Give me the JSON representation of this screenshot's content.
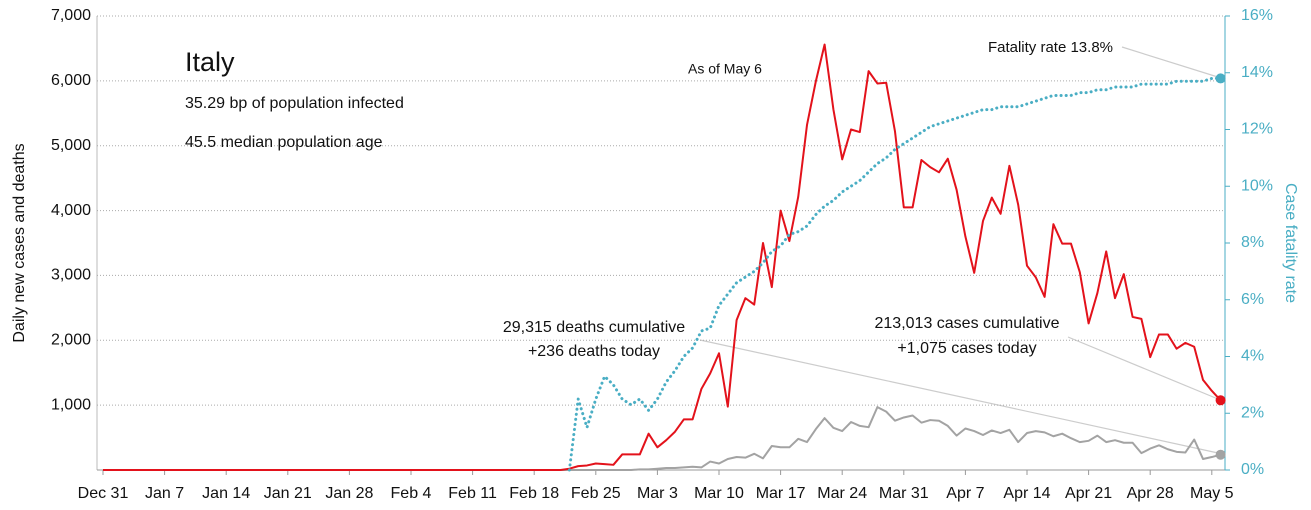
{
  "chart_data": {
    "type": "line",
    "ylabel": "Daily new cases and deaths",
    "y2label": "Case fatality rate",
    "annotations": [
      "Italy",
      "35.29 bp of population infected",
      "45.5 median population age",
      "As of May 6",
      "Fatality rate 13.8%",
      "29,315 deaths cumulative",
      "+236 deaths today",
      "213,013 cases cumulative",
      "+1,075 cases today"
    ],
    "categories": [
      "Dec 31",
      null,
      null,
      null,
      null,
      null,
      null,
      "Jan 7",
      null,
      null,
      null,
      null,
      null,
      null,
      "Jan 14",
      null,
      null,
      null,
      null,
      null,
      null,
      "Jan 21",
      null,
      null,
      null,
      null,
      null,
      null,
      "Jan 28",
      null,
      null,
      null,
      null,
      null,
      null,
      "Feb 4",
      null,
      null,
      null,
      null,
      null,
      null,
      "Feb 11",
      null,
      null,
      null,
      null,
      null,
      null,
      "Feb 18",
      null,
      null,
      null,
      null,
      null,
      null,
      "Feb 25",
      null,
      null,
      null,
      null,
      null,
      null,
      "Mar 3",
      null,
      null,
      null,
      null,
      null,
      null,
      "Mar 10",
      null,
      null,
      null,
      null,
      null,
      null,
      "Mar 17",
      null,
      null,
      null,
      null,
      null,
      null,
      "Mar 24",
      null,
      null,
      null,
      null,
      null,
      null,
      "Mar 31",
      null,
      null,
      null,
      null,
      null,
      null,
      "Apr 7",
      null,
      null,
      null,
      null,
      null,
      null,
      "Apr 14",
      null,
      null,
      null,
      null,
      null,
      null,
      "Apr 21",
      null,
      null,
      null,
      null,
      null,
      null,
      "Apr 28",
      null,
      null,
      null,
      null,
      null,
      null,
      "May 5",
      null
    ],
    "series": [
      {
        "color": "#e3121b",
        "style": "solid",
        "values": [
          0,
          0,
          0,
          0,
          0,
          0,
          0,
          0,
          0,
          0,
          0,
          0,
          0,
          0,
          0,
          0,
          0,
          0,
          0,
          0,
          0,
          0,
          0,
          0,
          0,
          0,
          0,
          0,
          0,
          0,
          0,
          0,
          0,
          0,
          0,
          0,
          0,
          0,
          0,
          0,
          0,
          0,
          0,
          0,
          0,
          0,
          0,
          0,
          0,
          0,
          0,
          0,
          0,
          20,
          60,
          70,
          100,
          90,
          80,
          240,
          240,
          240,
          560,
          350,
          460,
          590,
          780,
          780,
          1250,
          1490,
          1800,
          977,
          2310,
          2650,
          2550,
          3500,
          2820,
          4000,
          3530,
          4210,
          5320,
          5990,
          6560,
          5560,
          4790,
          5250,
          5210,
          6150,
          5960,
          5970,
          5220,
          4050,
          4050,
          4780,
          4670,
          4590,
          4800,
          4320,
          3600,
          3040,
          3840,
          4200,
          3950,
          4690,
          4090,
          3150,
          2970,
          2670,
          3790,
          3490,
          3490,
          3050,
          2260,
          2730,
          3370,
          2650,
          3020,
          2360,
          2330,
          1740,
          2090,
          2090,
          1870,
          1960,
          1900,
          1390,
          1220,
          1075
        ]
      },
      {
        "color": "#a3a3a3",
        "style": "solid",
        "values": [
          0,
          0,
          0,
          0,
          0,
          0,
          0,
          0,
          0,
          0,
          0,
          0,
          0,
          0,
          0,
          0,
          0,
          0,
          0,
          0,
          0,
          0,
          0,
          0,
          0,
          0,
          0,
          0,
          0,
          0,
          0,
          0,
          0,
          0,
          0,
          0,
          0,
          0,
          0,
          0,
          0,
          0,
          0,
          0,
          0,
          0,
          0,
          0,
          0,
          0,
          0,
          0,
          0,
          0,
          0,
          0,
          0,
          0,
          0,
          0,
          0,
          10,
          10,
          20,
          30,
          30,
          40,
          50,
          40,
          130,
          100,
          170,
          200,
          190,
          250,
          180,
          370,
          350,
          350,
          480,
          430,
          630,
          800,
          650,
          600,
          740,
          680,
          660,
          970,
          900,
          760,
          810,
          840,
          730,
          770,
          760,
          680,
          530,
          640,
          600,
          540,
          610,
          570,
          620,
          430,
          570,
          600,
          580,
          520,
          560,
          490,
          430,
          450,
          530,
          430,
          460,
          420,
          420,
          260,
          330,
          380,
          320,
          280,
          270,
          470,
          170,
          200,
          236
        ]
      },
      {
        "color": "#4aaec4",
        "style": "dotted",
        "axis": "y2",
        "values": [
          null,
          null,
          null,
          null,
          null,
          null,
          null,
          null,
          null,
          null,
          null,
          null,
          null,
          null,
          null,
          null,
          null,
          null,
          null,
          null,
          null,
          null,
          null,
          null,
          null,
          null,
          null,
          null,
          null,
          null,
          null,
          null,
          null,
          null,
          null,
          null,
          null,
          null,
          null,
          null,
          null,
          null,
          null,
          null,
          null,
          null,
          null,
          null,
          null,
          null,
          null,
          null,
          null,
          0,
          2.5,
          1.5,
          2.5,
          3.3,
          3.0,
          2.5,
          2.3,
          2.5,
          2.1,
          2.5,
          3.1,
          3.5,
          4.0,
          4.3,
          4.9,
          5.0,
          5.8,
          6.2,
          6.6,
          6.8,
          7.0,
          7.3,
          7.7,
          7.9,
          8.3,
          8.4,
          8.6,
          9.0,
          9.3,
          9.5,
          9.8,
          10.0,
          10.2,
          10.5,
          10.8,
          11.0,
          11.3,
          11.5,
          11.7,
          11.9,
          12.1,
          12.2,
          12.3,
          12.4,
          12.5,
          12.6,
          12.7,
          12.7,
          12.8,
          12.8,
          12.8,
          12.9,
          13.0,
          13.1,
          13.2,
          13.2,
          13.2,
          13.3,
          13.3,
          13.4,
          13.4,
          13.5,
          13.5,
          13.5,
          13.6,
          13.6,
          13.6,
          13.6,
          13.7,
          13.7,
          13.7,
          13.7,
          13.8,
          13.8
        ]
      }
    ],
    "ylim": [
      0,
      7000
    ],
    "yticks": [
      {
        "value": 1000,
        "label": "1,000"
      },
      {
        "value": 2000,
        "label": "2,000"
      },
      {
        "value": 3000,
        "label": "3,000"
      },
      {
        "value": 4000,
        "label": "4,000"
      },
      {
        "value": 5000,
        "label": "5,000"
      },
      {
        "value": 6000,
        "label": "6,000"
      },
      {
        "value": 7000,
        "label": "7,000"
      }
    ],
    "y2lim": [
      0,
      16
    ],
    "y2ticks": [
      {
        "value": 0,
        "label": "0%"
      },
      {
        "value": 2,
        "label": "2%"
      },
      {
        "value": 4,
        "label": "4%"
      },
      {
        "value": 6,
        "label": "6%"
      },
      {
        "value": 8,
        "label": "8%"
      },
      {
        "value": 10,
        "label": "10%"
      },
      {
        "value": 12,
        "label": "12%"
      },
      {
        "value": 14,
        "label": "14%"
      },
      {
        "value": 16,
        "label": "16%"
      }
    ],
    "y2color": "#4aaec4",
    "grid": true
  }
}
